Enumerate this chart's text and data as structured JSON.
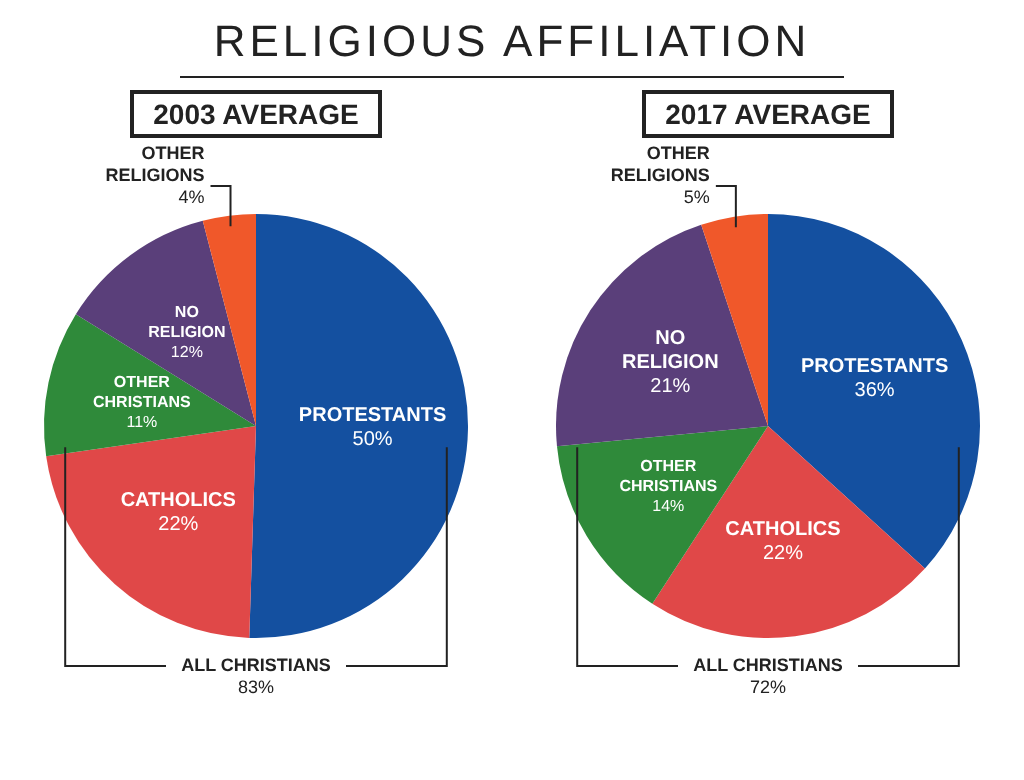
{
  "chart_data": [
    {
      "type": "pie",
      "title": "RELIGIOUS AFFILIATION",
      "subtitle": "2003 AVERAGE",
      "categories": [
        "PROTESTANTS",
        "CATHOLICS",
        "OTHER CHRISTIANS",
        "NO RELIGION",
        "OTHER RELIGIONS"
      ],
      "values": [
        50,
        22,
        11,
        12,
        4
      ],
      "value_labels": [
        "50%",
        "22%",
        "11%",
        "12%",
        "4%"
      ],
      "colors": [
        "#1450a0",
        "#e04848",
        "#2f8a3a",
        "#5a3f7a",
        "#f0582a"
      ],
      "annotations": [
        "ALL CHRISTIANS 83%"
      ],
      "legend": false
    },
    {
      "type": "pie",
      "subtitle": "2017 AVERAGE",
      "categories": [
        "PROTESTANTS",
        "CATHOLICS",
        "OTHER CHRISTIANS",
        "NO RELIGION",
        "OTHER RELIGIONS"
      ],
      "values": [
        36,
        22,
        14,
        21,
        5
      ],
      "value_labels": [
        "36%",
        "22%",
        "14%",
        "21%",
        "5%"
      ],
      "colors": [
        "#1450a0",
        "#e04848",
        "#2f8a3a",
        "#5a3f7a",
        "#f0582a"
      ],
      "annotations": [
        "ALL CHRISTIANS 72%"
      ],
      "legend": false
    }
  ]
}
